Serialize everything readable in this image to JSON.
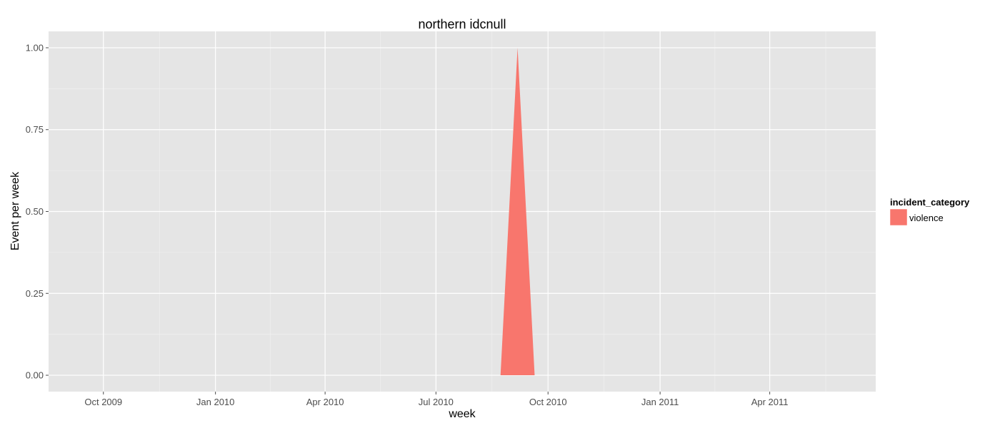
{
  "chart_data": {
    "type": "area",
    "title": "northern idcnull",
    "xlabel": "week",
    "ylabel": "Event per week",
    "x_axis": {
      "type": "date",
      "range": [
        "2009-08-17",
        "2011-06-27"
      ],
      "ticks": [
        {
          "date": "2009-10-01",
          "label": "Oct 2009"
        },
        {
          "date": "2010-01-01",
          "label": "Jan 2010"
        },
        {
          "date": "2010-04-01",
          "label": "Apr 2010"
        },
        {
          "date": "2010-07-01",
          "label": "Jul 2010"
        },
        {
          "date": "2010-10-01",
          "label": "Oct 2010"
        },
        {
          "date": "2011-01-01",
          "label": "Jan 2011"
        },
        {
          "date": "2011-04-01",
          "label": "Apr 2011"
        }
      ]
    },
    "y_axis": {
      "range": [
        -0.05,
        1.05
      ],
      "ticks": [
        {
          "value": 0,
          "label": "0.00"
        },
        {
          "value": 0.25,
          "label": "0.25"
        },
        {
          "value": 0.5,
          "label": "0.50"
        },
        {
          "value": 0.75,
          "label": "0.75"
        },
        {
          "value": 1,
          "label": "1.00"
        }
      ]
    },
    "grid": true,
    "legend": {
      "title": "incident_category",
      "position": "right"
    },
    "series": [
      {
        "name": "violence",
        "color": "#F8766D",
        "points": [
          {
            "x": "2010-08-23",
            "y": 0
          },
          {
            "x": "2010-09-06",
            "y": 1
          },
          {
            "x": "2010-09-20",
            "y": 0
          }
        ]
      }
    ]
  },
  "colors": {
    "panel_background": "#E5E5E5",
    "grid_major": "#FFFFFF",
    "axis_text": "#4D4D4D",
    "title_text": "#000000"
  }
}
